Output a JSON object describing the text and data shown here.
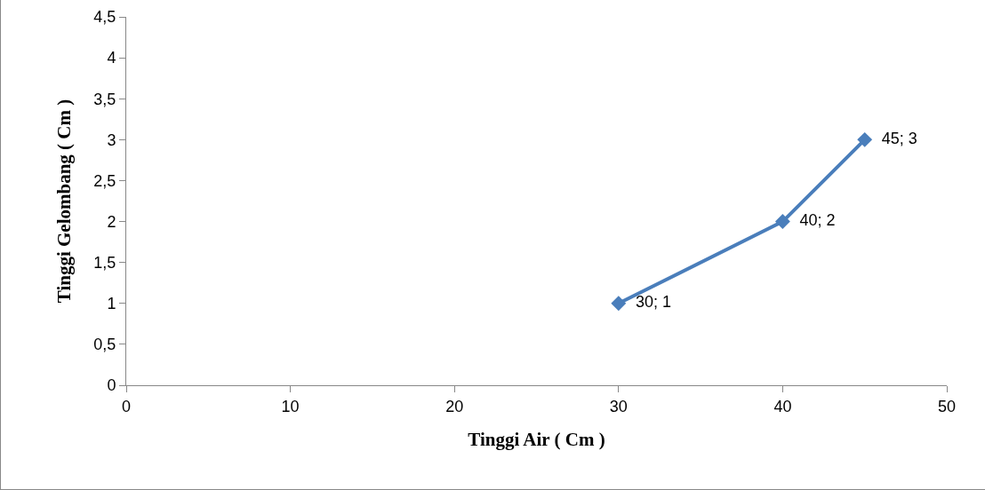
{
  "chart_data": {
    "type": "line",
    "xlabel": "Tinggi Air ( Cm )",
    "ylabel": "Tinggi Gelombang ( Cm )",
    "x": [
      30,
      40,
      45
    ],
    "series": [
      {
        "color": "#4a7ebb",
        "values": [
          1,
          2,
          3
        ],
        "value_labels": [
          "30; 1",
          "40; 2",
          "45; 3"
        ]
      }
    ],
    "xlim": [
      0,
      50
    ],
    "xticks": [
      0,
      10,
      20,
      30,
      40,
      50
    ],
    "ylim": [
      0,
      4.5
    ],
    "yticks": [
      0,
      {
        "value": 0.5,
        "label": "0,5"
      },
      1,
      {
        "value": 1.5,
        "label": "1,5"
      },
      2,
      {
        "value": 2.5,
        "label": "2,5"
      },
      3,
      {
        "value": 3.5,
        "label": "3,5"
      },
      4,
      {
        "value": 4.5,
        "label": "4,5"
      }
    ],
    "grid": false,
    "marker": "diamond",
    "line_style": "solid"
  }
}
